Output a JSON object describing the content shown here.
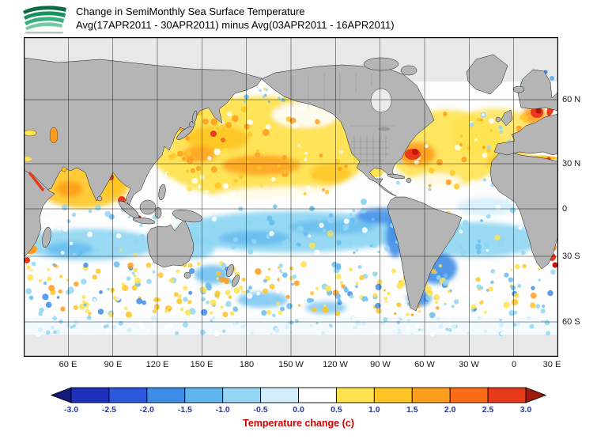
{
  "header": {
    "title_line1": "Change in SemiMonthly Sea Surface Temperature",
    "title_line2": "Avg(17APR2011 - 30APR2011) minus Avg(03APR2011 - 16APR2011)",
    "logo_icon": "green-waves-agency-logo"
  },
  "map": {
    "lat_labels": [
      "60 N",
      "30 N",
      "0",
      "30 S",
      "60 S"
    ],
    "lon_labels": [
      "60 E",
      "90 E",
      "120 E",
      "150 E",
      "180",
      "150 W",
      "120 W",
      "90 W",
      "60 W",
      "30 W",
      "0",
      "30 E"
    ],
    "land_color": "#b5b5b5",
    "no_data_color": "#e8e8e8",
    "grid_color": "#000000"
  },
  "colorbar": {
    "title": "Temperature change (c)",
    "title_color": "#d40000",
    "tick_labels": [
      "-3.0",
      "-2.5",
      "-2.0",
      "-1.5",
      "-1.0",
      "-0.5",
      "0.0",
      "0.5",
      "1.0",
      "1.5",
      "2.0",
      "2.5",
      "3.0"
    ],
    "tick_color": "#27379c",
    "arrow_left_color": "#11197a",
    "arrow_right_color": "#9e1a0e",
    "segment_colors": [
      "#1f2fbe",
      "#2b57dd",
      "#3d8ce8",
      "#61b5ef",
      "#96d5f5",
      "#d2eefb",
      "#ffffff",
      "#ffe24f",
      "#ffc524",
      "#ff9d1c",
      "#fb6c15",
      "#e8391a"
    ]
  }
}
